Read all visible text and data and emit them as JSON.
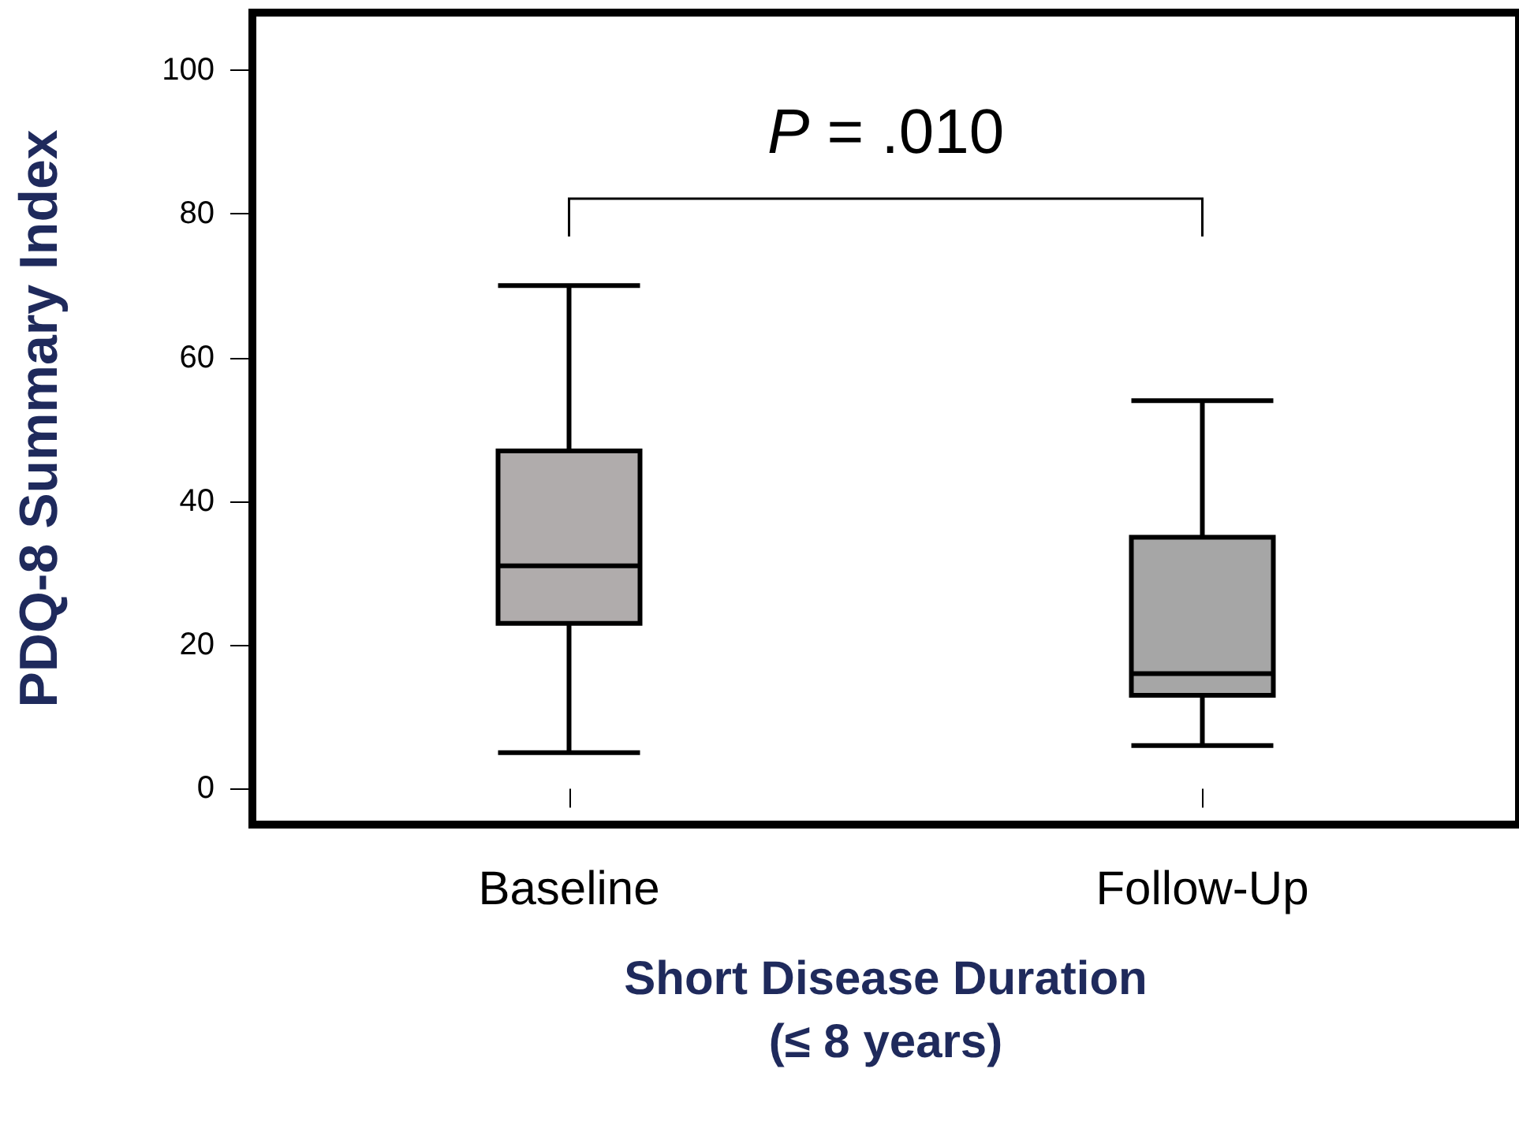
{
  "chart_data": {
    "type": "box",
    "xlabel": "Short Disease Duration\n(≤ 8 years)",
    "ylabel": "PDQ-8 Summary Index",
    "categories": [
      "Baseline",
      "Follow-Up"
    ],
    "boxes": [
      {
        "low": 5,
        "q1": 23,
        "median": 31,
        "q3": 47,
        "high": 70
      },
      {
        "low": 6,
        "q1": 13,
        "median": 16,
        "q3": 35,
        "high": 54
      }
    ],
    "colors": [
      "#b0acac",
      "#a6a6a6"
    ],
    "ylim": [
      -5,
      108
    ],
    "yticks": [
      0,
      20,
      40,
      60,
      80,
      100
    ],
    "grid": false,
    "annotations": [
      "P = .010"
    ]
  }
}
